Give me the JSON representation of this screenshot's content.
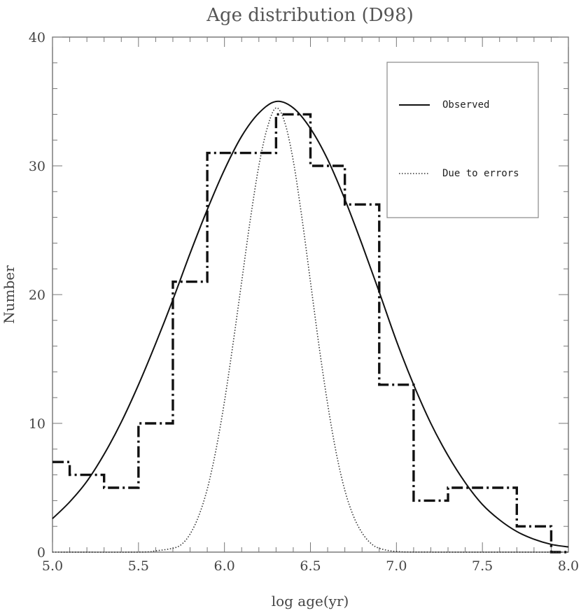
{
  "chart_data": {
    "type": "line",
    "title": "Age distribution (D98)",
    "xlabel": "log age(yr)",
    "ylabel": "Number",
    "xlim": [
      5.0,
      8.0
    ],
    "ylim": [
      0,
      40
    ],
    "x_ticks": [
      "5.0",
      "5.5",
      "6.0",
      "6.5",
      "7.0",
      "7.5",
      "8.0"
    ],
    "y_ticks": [
      "0",
      "10",
      "20",
      "30",
      "40"
    ],
    "grid": false,
    "legend_position": "top-right",
    "histogram": {
      "style": "dash-dot step",
      "edges": [
        5.0,
        5.1,
        5.3,
        5.5,
        5.7,
        5.9,
        6.1,
        6.3,
        6.5,
        6.7,
        6.9,
        7.1,
        7.3,
        7.5,
        7.7,
        7.9,
        8.0
      ],
      "values": [
        7,
        6,
        5,
        10,
        21,
        31,
        31,
        34,
        30,
        27,
        13,
        4,
        5,
        5,
        2,
        0
      ]
    },
    "series": [
      {
        "name": "Observed",
        "style": "solid",
        "x": [
          5.0,
          5.1,
          5.2,
          5.3,
          5.4,
          5.5,
          5.6,
          5.7,
          5.8,
          5.9,
          6.0,
          6.1,
          6.2,
          6.3,
          6.4,
          6.5,
          6.6,
          6.7,
          6.8,
          6.9,
          7.0,
          7.1,
          7.2,
          7.3,
          7.4,
          7.5,
          7.6,
          7.7,
          7.8,
          7.9,
          8.0
        ],
        "y": [
          2.6,
          3.9,
          5.5,
          7.6,
          10.1,
          13.0,
          16.2,
          19.6,
          23.2,
          26.6,
          29.7,
          32.3,
          34.1,
          35.0,
          34.5,
          32.9,
          30.5,
          27.4,
          23.9,
          20.2,
          16.4,
          13.0,
          10.0,
          7.5,
          5.4,
          3.7,
          2.5,
          1.6,
          1.0,
          0.6,
          0.4
        ]
      },
      {
        "name": "Due to errors",
        "style": "dotted",
        "x": [
          5.0,
          5.5,
          5.6,
          5.7,
          5.75,
          5.8,
          5.85,
          5.9,
          5.95,
          6.0,
          6.05,
          6.1,
          6.15,
          6.2,
          6.25,
          6.3,
          6.35,
          6.4,
          6.45,
          6.5,
          6.55,
          6.6,
          6.65,
          6.7,
          6.75,
          6.8,
          6.85,
          6.9,
          7.0,
          7.2,
          8.0
        ],
        "y": [
          0,
          0,
          0.1,
          0.3,
          0.6,
          1.4,
          2.8,
          4.9,
          7.9,
          11.7,
          16.2,
          21.0,
          25.8,
          30.0,
          33.0,
          34.5,
          33.4,
          30.4,
          26.0,
          21.0,
          16.0,
          11.5,
          7.7,
          4.8,
          2.8,
          1.5,
          0.7,
          0.3,
          0.05,
          0,
          0
        ]
      }
    ]
  }
}
